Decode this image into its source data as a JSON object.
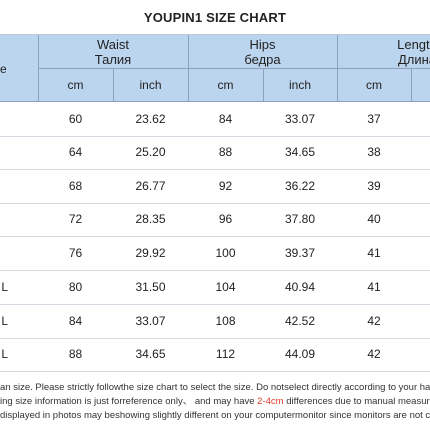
{
  "title": "YOUPIN1 SIZE CHART",
  "header": {
    "size_label_visible": "e",
    "groups": [
      {
        "name_en": "Waist",
        "name_ru": "Талия"
      },
      {
        "name_en": "Hips",
        "name_ru": "бедра"
      },
      {
        "name_en": "Length",
        "name_ru": "Длина"
      }
    ],
    "units": [
      "cm",
      "inch",
      "cm",
      "inch",
      "cm"
    ]
  },
  "rows": [
    {
      "size_visible": "",
      "waist_cm": "60",
      "waist_inch": "23.62",
      "hips_cm": "84",
      "hips_inch": "33.07",
      "length_cm": "37"
    },
    {
      "size_visible": "",
      "waist_cm": "64",
      "waist_inch": "25.20",
      "hips_cm": "88",
      "hips_inch": "34.65",
      "length_cm": "38"
    },
    {
      "size_visible": "",
      "waist_cm": "68",
      "waist_inch": "26.77",
      "hips_cm": "92",
      "hips_inch": "36.22",
      "length_cm": "39"
    },
    {
      "size_visible": "",
      "waist_cm": "72",
      "waist_inch": "28.35",
      "hips_cm": "96",
      "hips_inch": "37.80",
      "length_cm": "40"
    },
    {
      "size_visible": "",
      "waist_cm": "76",
      "waist_inch": "29.92",
      "hips_cm": "100",
      "hips_inch": "39.37",
      "length_cm": "41"
    },
    {
      "size_visible": "L",
      "waist_cm": "80",
      "waist_inch": "31.50",
      "hips_cm": "104",
      "hips_inch": "40.94",
      "length_cm": "41"
    },
    {
      "size_visible": "L",
      "waist_cm": "84",
      "waist_inch": "33.07",
      "hips_cm": "108",
      "hips_inch": "42.52",
      "length_cm": "42"
    },
    {
      "size_visible": "L",
      "waist_cm": "88",
      "waist_inch": "34.65",
      "hips_cm": "112",
      "hips_inch": "44.09",
      "length_cm": "42"
    }
  ],
  "notes": {
    "line1": "an size. Please strictly followthe size chart to select the size. Do notselect directly according to your habi",
    "line2_before": "ing size information is just forreference only、 and may have ",
    "line2_highlight": "2-4cm",
    "line2_after": " differences due to manual measurem",
    "line3": "displayed in photos may beshowing slightly different on your computermonitor since monitors are not cal"
  },
  "colors": {
    "header_bg": "#bcd5ef",
    "highlight": "#e23b2e",
    "grid": "#8aa2bd"
  }
}
